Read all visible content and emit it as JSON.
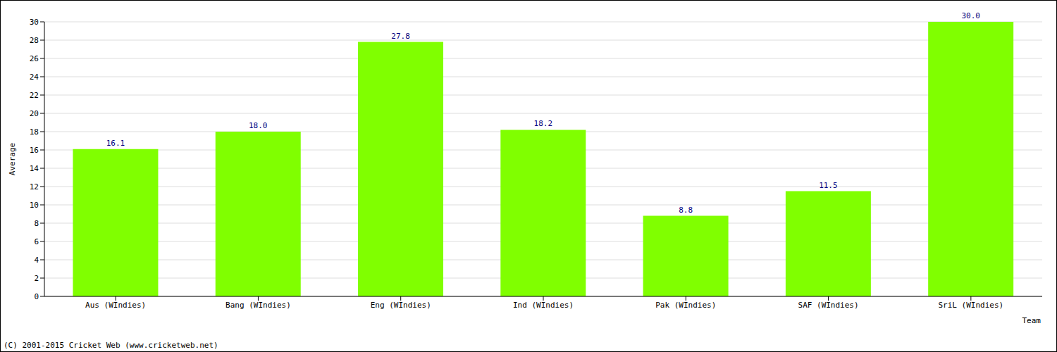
{
  "chart_data": {
    "type": "bar",
    "x_label": "Team",
    "y_label": "Average",
    "annotations": [
      "(C) 2001-2015 Cricket Web (www.cricketweb.net)"
    ],
    "categories": [
      "Aus (WIndies)",
      "Bang (WIndies)",
      "Eng (WIndies)",
      "Ind (WIndies)",
      "Pak (WIndies)",
      "SAF (WIndies)",
      "SriL (WIndies)"
    ],
    "values": [
      16.1,
      18,
      27.8,
      18.2,
      8.8,
      11.5,
      30
    ],
    "value_labels": [
      "16.1",
      "18.0",
      "27.8",
      "18.2",
      "8.8",
      "11.5",
      "30.0"
    ],
    "color": "#80ff00",
    "ylim": [
      0,
      30
    ],
    "yticks": [
      0,
      2,
      4,
      6,
      8,
      10,
      12,
      14,
      16,
      18,
      20,
      22,
      24,
      26,
      28,
      30
    ],
    "grid": true,
    "data_labels": true
  }
}
